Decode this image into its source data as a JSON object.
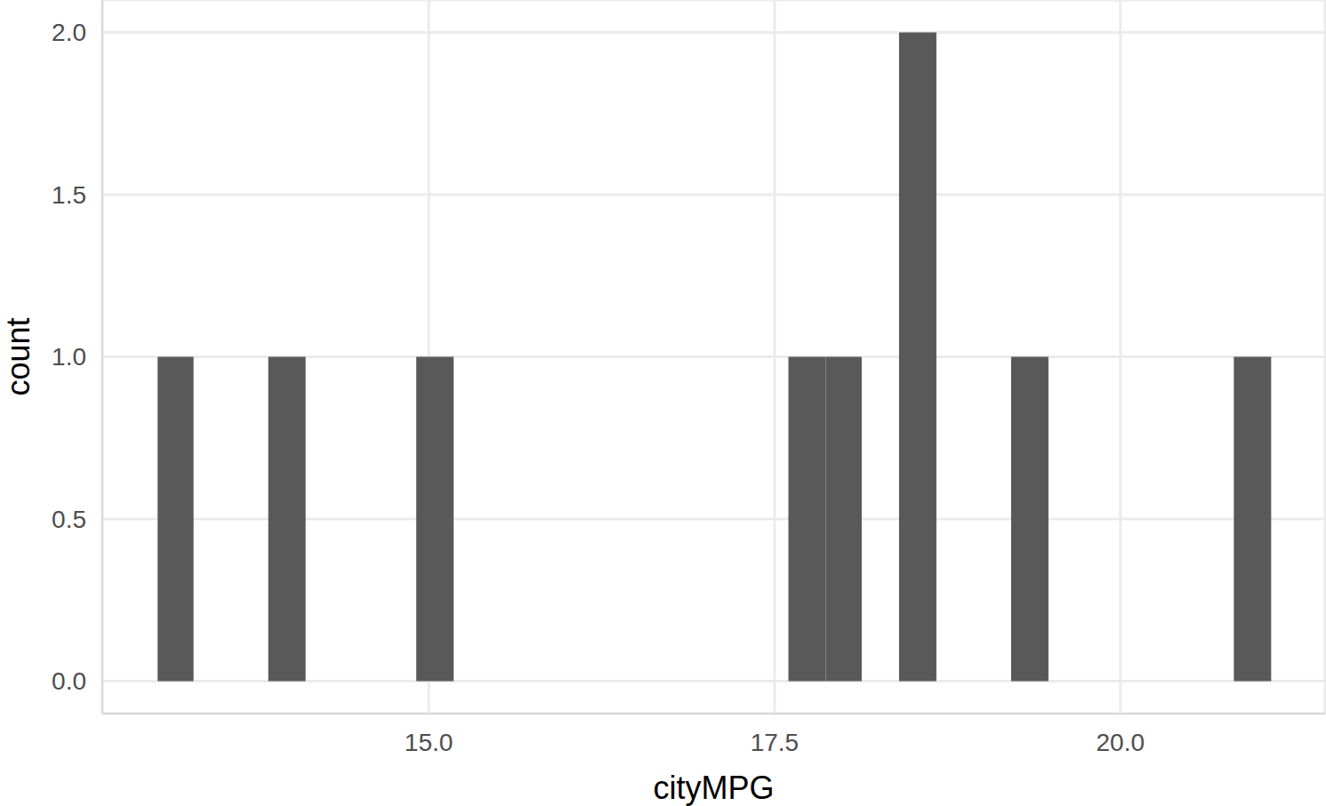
{
  "chart_data": {
    "type": "histogram",
    "x_label": "cityMPG",
    "y_label": "count",
    "bins": [
      13.04,
      13.3,
      13.57,
      13.84,
      14.11,
      14.38,
      14.65,
      14.91,
      15.18,
      15.45,
      15.72,
      15.99,
      16.26,
      16.52,
      16.79,
      17.06,
      17.33,
      17.6,
      17.87,
      18.13,
      18.4,
      18.67,
      18.94,
      19.21,
      19.48,
      19.74,
      20.01,
      20.28,
      20.55,
      20.82,
      21.09
    ],
    "counts": [
      1,
      0,
      0,
      1,
      0,
      0,
      0,
      1,
      0,
      0,
      0,
      0,
      0,
      0,
      0,
      0,
      0,
      1,
      1,
      0,
      2,
      0,
      0,
      1,
      0,
      0,
      0,
      0,
      0,
      1
    ],
    "color": "#595959",
    "xlim": [
      12.64,
      21.48
    ],
    "ylim": [
      -0.1,
      2.1
    ],
    "xticks": [
      {
        "value": 15,
        "label": "15.0"
      },
      {
        "value": 17.5,
        "label": "17.5"
      },
      {
        "value": 20,
        "label": "20.0"
      }
    ],
    "yticks": [
      {
        "value": 0,
        "label": "0.0"
      },
      {
        "value": 0.5,
        "label": "0.5"
      },
      {
        "value": 1,
        "label": "1.0"
      },
      {
        "value": 1.5,
        "label": "1.5"
      },
      {
        "value": 2,
        "label": "2.0"
      }
    ],
    "grid": true
  }
}
